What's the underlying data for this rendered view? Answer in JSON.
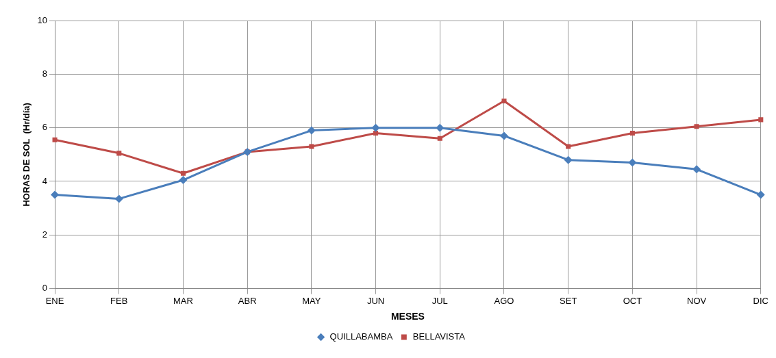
{
  "chart_data": {
    "type": "line",
    "xlabel": "MESES",
    "ylabel": "HORAS DE SOL  (Hr/día)",
    "categories": [
      "ENE",
      "FEB",
      "MAR",
      "ABR",
      "MAY",
      "JUN",
      "JUL",
      "AGO",
      "SET",
      "OCT",
      "NOV",
      "DIC"
    ],
    "series": [
      {
        "name": "QUILLABAMBA",
        "color": "#4a7ebb",
        "marker": "diamond",
        "values": [
          3.5,
          3.35,
          4.05,
          5.1,
          5.9,
          6.0,
          6.0,
          5.7,
          4.8,
          4.7,
          4.45,
          3.5
        ]
      },
      {
        "name": "BELLAVISTA",
        "color": "#be4b48",
        "marker": "square",
        "values": [
          5.55,
          5.05,
          4.3,
          5.1,
          5.3,
          5.8,
          5.6,
          7.0,
          5.3,
          5.8,
          6.05,
          6.3
        ]
      }
    ],
    "ylim": [
      0,
      10
    ],
    "yticks": [
      0,
      2,
      4,
      6,
      8,
      10
    ],
    "grid": true,
    "legend": "bottom",
    "line_style": "solid"
  }
}
